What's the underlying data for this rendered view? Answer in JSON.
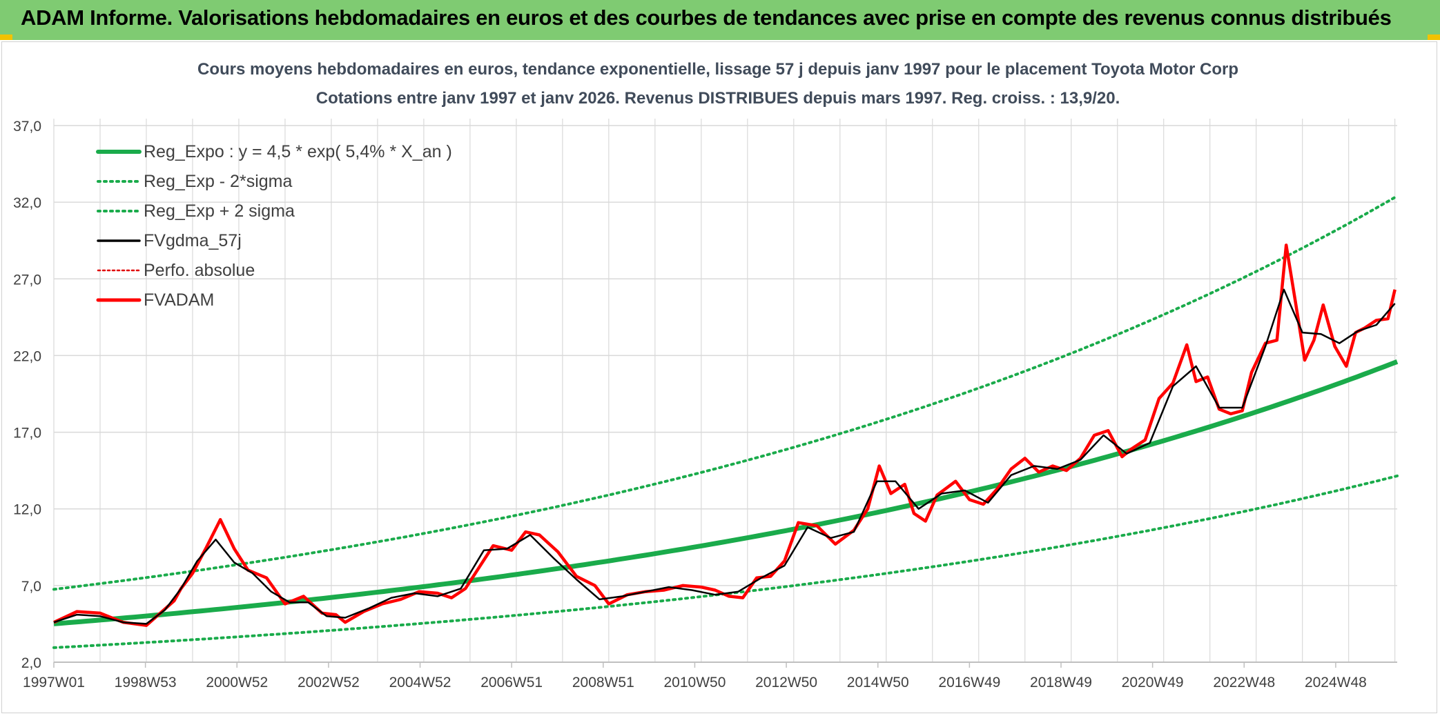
{
  "header": {
    "title": "ADAM Informe. Valorisations hebdomadaires en euros et des courbes de tendances avec prise en compte des revenus connus distribués"
  },
  "colors": {
    "header_bg": "#7fcb72",
    "reg_expo": "#1aab4b",
    "fvgdma": "#000000",
    "fvadam": "#ff0000",
    "perfo": "#e00000",
    "grid": "#d9d9d9"
  },
  "chart_data": {
    "type": "line",
    "title": "Cours moyens hebdomadaires en euros, tendance exponentielle, lissage 57 j depuis janv 1997 pour le placement Toyota Motor Corp",
    "subtitle": "Cotations entre janv 1997 et janv 2026. Revenus DISTRIBUES depuis mars 1997. Reg. croiss. : 13,9/20.",
    "ylim": [
      2.0,
      37.0
    ],
    "y_ticks": [
      "2,0",
      "7,0",
      "12,0",
      "17,0",
      "22,0",
      "27,0",
      "32,0",
      "37,0"
    ],
    "x_ticks": [
      "1997W01",
      "1998W53",
      "2000W52",
      "2002W52",
      "2004W52",
      "2006W51",
      "2008W51",
      "2010W50",
      "2012W50",
      "2014W50",
      "2016W49",
      "2018W49",
      "2020W49",
      "2022W48",
      "2024W48"
    ],
    "x_range_years": [
      1997.0,
      2026.05
    ],
    "grid": true,
    "legend_position": "top-left",
    "legend": [
      {
        "label": "Reg_Expo : y = 4,5 * exp( 5,4% *  X_an )",
        "style": "solid-thick",
        "color": "#1aab4b"
      },
      {
        "label": "Reg_Exp - 2*sigma",
        "style": "dotted",
        "color": "#1aab4b"
      },
      {
        "label": "Reg_Exp + 2 sigma",
        "style": "dotted",
        "color": "#1aab4b"
      },
      {
        "label": "FVgdma_57j",
        "style": "solid",
        "color": "#000000"
      },
      {
        "label": "Perfo. absolue",
        "style": "dotted-thin",
        "color": "#e00000"
      },
      {
        "label": "FVADAM",
        "style": "solid-thick",
        "color": "#ff0000"
      }
    ],
    "regression": {
      "a": 4.5,
      "rate": 0.054,
      "lower_factor": 0.655,
      "upper_factor": 1.5
    },
    "series": [
      {
        "name": "FVADAM",
        "x": [
          1997.0,
          1997.5,
          1998.0,
          1998.5,
          1999.0,
          1999.3,
          1999.6,
          1999.75,
          2000.0,
          2000.3,
          2000.6,
          2000.9,
          2001.2,
          2001.6,
          2002.0,
          2002.4,
          2002.8,
          2003.1,
          2003.3,
          2003.7,
          2004.1,
          2004.5,
          2004.9,
          2005.3,
          2005.6,
          2005.9,
          2006.2,
          2006.5,
          2006.9,
          2007.2,
          2007.5,
          2007.9,
          2008.3,
          2008.7,
          2009.0,
          2009.4,
          2009.8,
          2010.2,
          2010.6,
          2011.0,
          2011.3,
          2011.6,
          2011.9,
          2012.2,
          2012.5,
          2012.8,
          2013.1,
          2013.5,
          2013.9,
          2014.3,
          2014.6,
          2014.85,
          2015.1,
          2015.4,
          2015.6,
          2015.85,
          2016.1,
          2016.5,
          2016.8,
          2017.1,
          2017.4,
          2017.7,
          2018.0,
          2018.3,
          2018.6,
          2018.9,
          2019.2,
          2019.5,
          2019.8,
          2020.1,
          2020.3,
          2020.6,
          2020.9,
          2021.2,
          2021.5,
          2021.7,
          2021.95,
          2022.2,
          2022.45,
          2022.7,
          2022.9,
          2023.2,
          2023.45,
          2023.65,
          2023.85,
          2024.05,
          2024.25,
          2024.45,
          2024.7,
          2024.95,
          2025.15,
          2025.35,
          2025.6,
          2025.85,
          2026.0
        ],
        "y": [
          4.6,
          5.3,
          5.2,
          4.6,
          4.4,
          5.2,
          6.0,
          6.8,
          7.8,
          9.5,
          11.3,
          9.4,
          8.0,
          7.5,
          5.8,
          6.3,
          5.2,
          5.1,
          4.6,
          5.3,
          5.8,
          6.1,
          6.6,
          6.5,
          6.2,
          6.8,
          8.2,
          9.6,
          9.3,
          10.5,
          10.3,
          9.2,
          7.6,
          7.0,
          5.8,
          6.4,
          6.6,
          6.7,
          7.0,
          6.9,
          6.7,
          6.3,
          6.2,
          7.5,
          7.6,
          8.6,
          11.1,
          10.9,
          9.7,
          10.6,
          12.0,
          14.8,
          13.0,
          13.6,
          11.7,
          11.2,
          12.9,
          13.8,
          12.6,
          12.3,
          13.3,
          14.6,
          15.3,
          14.4,
          14.8,
          14.5,
          15.3,
          16.8,
          17.1,
          15.4,
          15.9,
          16.5,
          19.2,
          20.2,
          22.7,
          20.3,
          20.6,
          18.5,
          18.2,
          18.4,
          20.9,
          22.8,
          23.0,
          29.2,
          25.5,
          21.7,
          23.0,
          25.3,
          22.6,
          21.3,
          23.5,
          23.8,
          24.3,
          24.4,
          26.3
        ]
      },
      {
        "name": "FVgdma_57j",
        "x": [
          1997.0,
          1997.5,
          1998.0,
          1998.5,
          1999.0,
          1999.4,
          1999.75,
          2000.1,
          2000.5,
          2000.9,
          2001.3,
          2001.7,
          2002.1,
          2002.5,
          2002.9,
          2003.3,
          2003.8,
          2004.3,
          2004.8,
          2005.3,
          2005.8,
          2006.3,
          2006.8,
          2007.3,
          2007.8,
          2008.3,
          2008.8,
          2009.3,
          2009.8,
          2010.3,
          2010.8,
          2011.3,
          2011.8,
          2012.3,
          2012.8,
          2013.3,
          2013.8,
          2014.3,
          2014.8,
          2015.2,
          2015.7,
          2016.2,
          2016.7,
          2017.2,
          2017.7,
          2018.2,
          2018.7,
          2019.2,
          2019.7,
          2020.2,
          2020.7,
          2021.2,
          2021.7,
          2022.2,
          2022.7,
          2023.2,
          2023.6,
          2024.0,
          2024.4,
          2024.8,
          2025.2,
          2025.6,
          2026.0
        ],
        "y": [
          4.6,
          5.1,
          5.0,
          4.6,
          4.5,
          5.4,
          6.8,
          8.6,
          10.0,
          8.5,
          7.8,
          6.6,
          5.9,
          5.9,
          5.0,
          4.9,
          5.5,
          6.2,
          6.5,
          6.3,
          6.8,
          9.3,
          9.4,
          10.3,
          8.8,
          7.4,
          6.1,
          6.3,
          6.6,
          6.9,
          6.7,
          6.4,
          6.6,
          7.5,
          8.3,
          10.8,
          10.1,
          10.5,
          13.8,
          13.8,
          12.0,
          13.0,
          13.2,
          12.4,
          14.2,
          14.8,
          14.6,
          15.2,
          16.8,
          15.6,
          16.3,
          20.0,
          21.3,
          18.6,
          18.6,
          22.6,
          26.3,
          23.5,
          23.4,
          22.8,
          23.6,
          24.0,
          25.4
        ]
      }
    ]
  }
}
